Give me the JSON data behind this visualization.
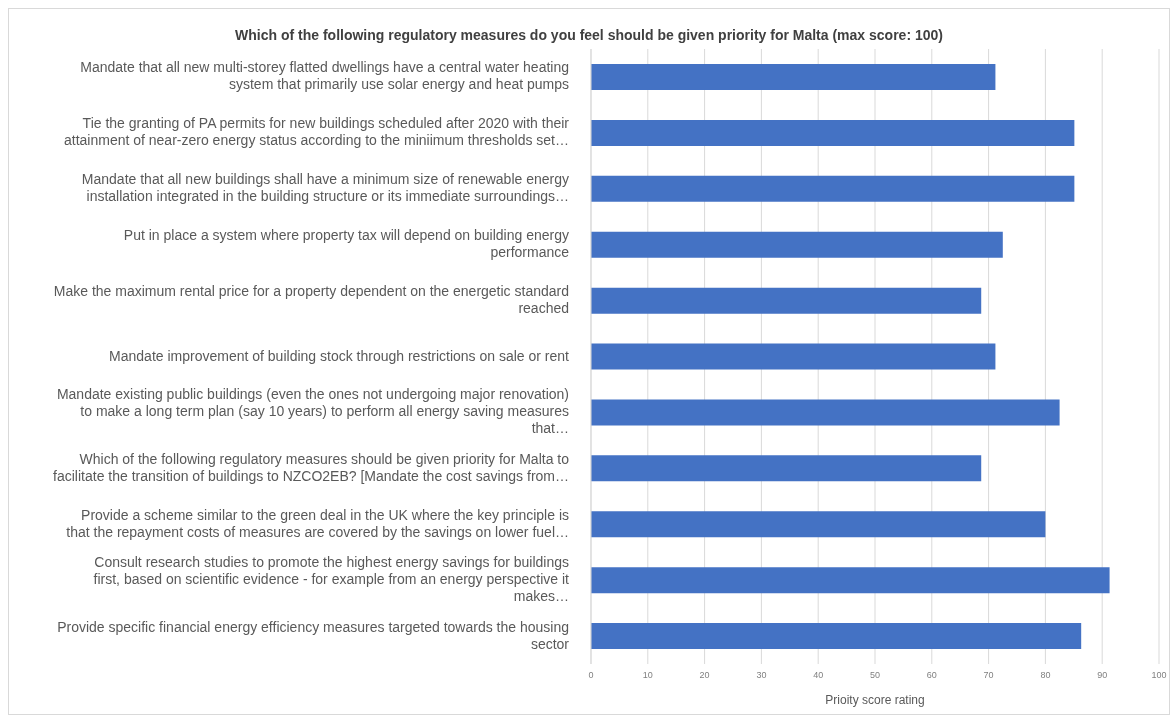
{
  "chart_data": {
    "type": "bar",
    "orientation": "horizontal",
    "title": "Which of the following regulatory measures do you feel should be given priority  for Malta (max score: 100)",
    "xlabel": "Prioity score rating",
    "categories": [
      "Mandate that all new multi-storey flatted dwellings have a central water heating system that primarily use solar energy and heat pumps",
      "Tie the granting of PA permits for new buildings scheduled after 2020 with their attainment of near-zero energy status according to the miniimum thresholds set…",
      "Mandate that all new buildings shall have a minimum size of renewable energy installation integrated in the building structure or its immediate surroundings…",
      "Put in place a system where property tax will depend on building energy performance",
      "Make the maximum rental price for a property dependent on the energetic standard reached",
      "Mandate improvement of building stock through restrictions on sale or rent",
      "Mandate existing public buildings (even the ones not undergoing major renovation) to make a long term plan (say 10 years) to perform all energy saving measures that…",
      "Which of the following regulatory measures should be given priority  for Malta to facilitate the transition of buildings to NZCO2EB? [Mandate the cost savings from…",
      "Provide a scheme similar to the green deal in the UK where the key principle is that the repayment costs of measures are covered by the savings on lower fuel…",
      "Consult research studies to promote the highest energy savings for buildings first, based on scientific evidence - for example from an energy perspective it makes…",
      "Provide specific financial energy efficiency measures targeted towards the housing sector"
    ],
    "values": [
      71.2,
      85.1,
      85.1,
      72.5,
      68.7,
      71.2,
      82.5,
      68.7,
      80,
      91.3,
      86.3
    ],
    "color": "#4472c4",
    "xlim": [
      0,
      100
    ],
    "xticks": [
      0,
      10,
      20,
      30,
      40,
      50,
      60,
      70,
      80,
      90,
      100
    ],
    "grid": "x",
    "legend": false
  }
}
